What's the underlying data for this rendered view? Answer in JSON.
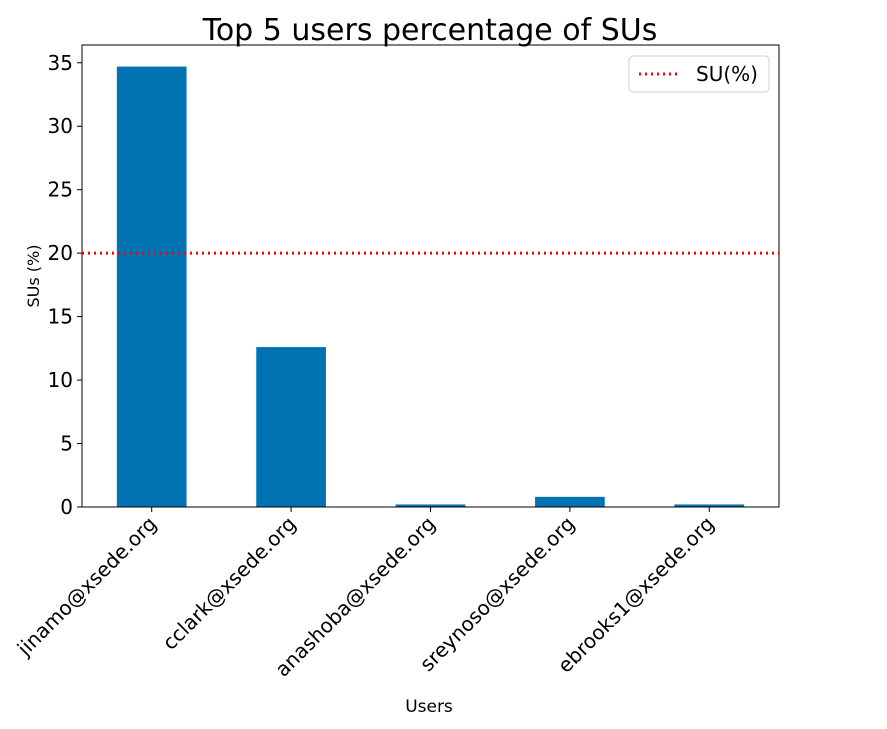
{
  "chart_data": {
    "type": "bar",
    "title": "Top 5 users percentage of SUs",
    "xlabel": "Users",
    "ylabel": "SUs (%)",
    "categories": [
      "jinamo@xsede.org",
      "cclark@xsede.org",
      "anashoba@xsede.org",
      "sreynoso@xsede.org",
      "ebrooks1@xsede.org"
    ],
    "values": [
      34.7,
      12.6,
      0.2,
      0.8,
      0.2
    ],
    "ylim": [
      0,
      36.4
    ],
    "yticks": [
      "0",
      "5",
      "10",
      "15",
      "20",
      "25",
      "30",
      "35"
    ],
    "grid": false,
    "bar_color": "#0173b2",
    "reference_line": {
      "label": "SU(%)",
      "value": 20,
      "color": "#ff0000",
      "style": "dotted"
    },
    "legend": {
      "placement": "top-right",
      "entries": [
        "SU(%)"
      ]
    }
  }
}
